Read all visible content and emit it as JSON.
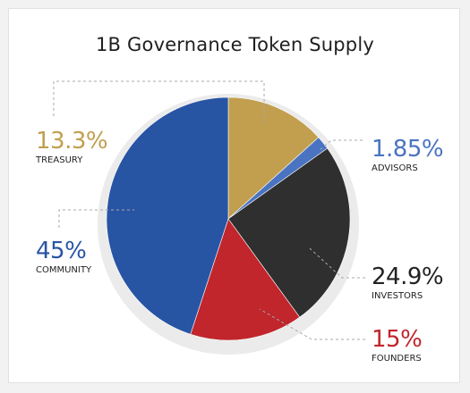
{
  "chart_data": {
    "type": "pie",
    "title": "1B Governance Token Supply",
    "slices": [
      {
        "label": "TREASURY",
        "value_label": "13.3%",
        "value": 13.3,
        "color": "#c19f4f"
      },
      {
        "label": "ADVISORS",
        "value_label": "1.85%",
        "value": 1.85,
        "color": "#4a74c1"
      },
      {
        "label": "INVESTORS",
        "value_label": "24.9%",
        "value": 24.9,
        "color": "#2f2f2f"
      },
      {
        "label": "FOUNDERS",
        "value_label": "15%",
        "value": 15,
        "color": "#c0262c"
      },
      {
        "label": "COMMUNITY",
        "value_label": "45%",
        "value": 45,
        "color": "#2854a4"
      }
    ]
  }
}
